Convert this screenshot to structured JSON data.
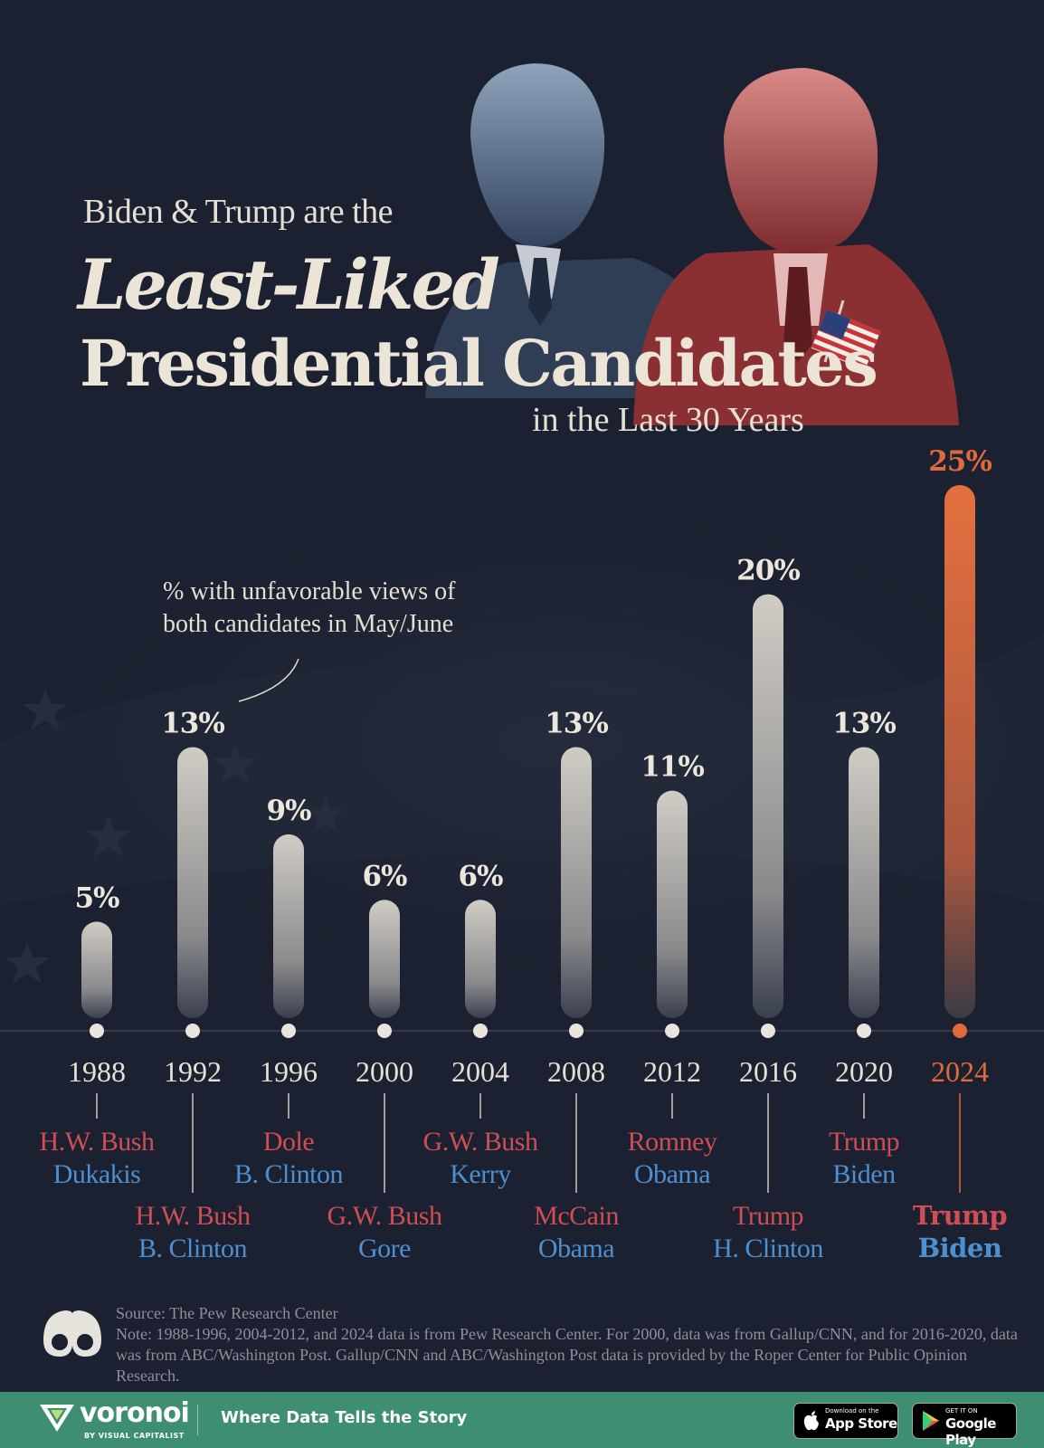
{
  "title": {
    "line1": "Biden & Trump are the",
    "line2": "Least-Liked",
    "line3": "Presidential Candidates",
    "line4": "in the Last 30 Years"
  },
  "annotation": {
    "line1": "% with unfavorable views of",
    "line2": "both candidates in May/June"
  },
  "chart_data": {
    "type": "bar",
    "title": "Biden & Trump are the Least-Liked Presidential Candidates in the Last 30 Years",
    "ylabel": "% with unfavorable views of both candidates in May/June",
    "categories": [
      "1988",
      "1992",
      "1996",
      "2000",
      "2004",
      "2008",
      "2012",
      "2016",
      "2020",
      "2024"
    ],
    "values": [
      5,
      13,
      9,
      6,
      6,
      13,
      11,
      20,
      13,
      25
    ],
    "value_labels": [
      "5%",
      "13%",
      "9%",
      "6%",
      "6%",
      "13%",
      "11%",
      "20%",
      "13%",
      "25%"
    ],
    "candidates": [
      {
        "republican": "H.W. Bush",
        "democrat": "Dukakis"
      },
      {
        "republican": "H.W. Bush",
        "democrat": "B. Clinton"
      },
      {
        "republican": "Dole",
        "democrat": "B. Clinton"
      },
      {
        "republican": "G.W. Bush",
        "democrat": "Gore"
      },
      {
        "republican": "G.W. Bush",
        "democrat": "Kerry"
      },
      {
        "republican": "McCain",
        "democrat": "Obama"
      },
      {
        "republican": "Romney",
        "democrat": "Obama"
      },
      {
        "republican": "Trump",
        "democrat": "H. Clinton"
      },
      {
        "republican": "Trump",
        "democrat": "Biden"
      },
      {
        "republican": "Trump",
        "democrat": "Biden"
      }
    ],
    "highlight_index": 9,
    "ylim": [
      0,
      25
    ],
    "colors": {
      "bar": "#bdb9b2",
      "highlight": "#e06a3e",
      "republican": "#cf4e55",
      "democrat": "#4d8fcf",
      "axis": "#5d6373"
    }
  },
  "footer": {
    "source": "Source: The Pew Research Center",
    "note": "Note: 1988-1996, 2004-2012, and 2024 data is from Pew Research Center. For 2000, data was from Gallup/CNN, and for 2016-2020, data was from ABC/Washington Post. Gallup/CNN and ABC/Washington Post data is provided by the Roper Center for Public Opinion Research.",
    "brand": "voronoi",
    "brand_sub": "BY VISUAL CAPITALIST",
    "tagline": "Where Data Tells the Story",
    "app_store_small": "Download on the",
    "app_store": "App Store",
    "google_play_small": "GET IT ON",
    "google_play": "Google Play"
  }
}
